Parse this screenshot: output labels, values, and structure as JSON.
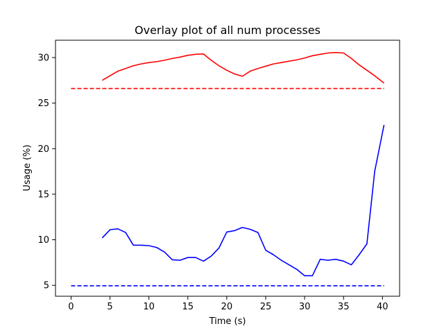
{
  "chart_data": {
    "type": "line",
    "title": "Overlay plot of all num processes",
    "xlabel": "Time (s)",
    "ylabel": "Usage (%)",
    "xlim": [
      -2.0,
      42.2
    ],
    "ylim": [
      3.8,
      31.9
    ],
    "xticks": [
      0,
      5,
      10,
      15,
      20,
      25,
      30,
      35,
      40
    ],
    "yticks": [
      5,
      10,
      15,
      20,
      25,
      30
    ],
    "grid": false,
    "series": [
      {
        "color": "#ff0000",
        "style": "solid",
        "x": [
          4,
          5,
          6,
          7,
          8,
          9,
          10,
          11,
          12,
          13,
          14,
          15,
          16,
          17,
          18,
          19,
          20,
          21,
          22,
          23,
          24,
          25,
          26,
          27,
          28,
          29,
          30,
          31,
          32,
          33,
          34,
          35,
          36,
          37,
          38,
          39,
          40.2
        ],
        "y": [
          27.5,
          28.0,
          28.5,
          28.8,
          29.1,
          29.3,
          29.45,
          29.55,
          29.7,
          29.9,
          30.05,
          30.25,
          30.35,
          30.4,
          29.7,
          29.1,
          28.6,
          28.2,
          27.95,
          28.5,
          28.8,
          29.05,
          29.3,
          29.45,
          29.6,
          29.75,
          29.95,
          30.2,
          30.35,
          30.5,
          30.55,
          30.5,
          29.9,
          29.2,
          28.6,
          28.0,
          27.2
        ]
      },
      {
        "color": "#ff0000",
        "style": "dashed",
        "x": [
          0,
          40.2
        ],
        "y": [
          26.6,
          26.6
        ]
      },
      {
        "color": "#0000ff",
        "style": "solid",
        "x": [
          4,
          5,
          6,
          7,
          8,
          9,
          10,
          11,
          12,
          13,
          14,
          15,
          16,
          17,
          18,
          19,
          20,
          21,
          22,
          23,
          24,
          25,
          26,
          27,
          28,
          29,
          30,
          31,
          32,
          33,
          34,
          35,
          36,
          37,
          38,
          39,
          40.2
        ],
        "y": [
          10.2,
          11.1,
          11.2,
          10.8,
          9.4,
          9.4,
          9.35,
          9.15,
          8.65,
          7.8,
          7.75,
          8.05,
          8.05,
          7.65,
          8.2,
          9.1,
          10.85,
          11.0,
          11.35,
          11.15,
          10.8,
          8.85,
          8.35,
          7.75,
          7.25,
          6.75,
          6.05,
          6.05,
          7.85,
          7.75,
          7.85,
          7.65,
          7.25,
          8.35,
          9.55,
          17.5,
          22.6
        ]
      },
      {
        "color": "#0000ff",
        "style": "dashed",
        "x": [
          0,
          40.2
        ],
        "y": [
          4.95,
          4.95
        ]
      }
    ]
  }
}
